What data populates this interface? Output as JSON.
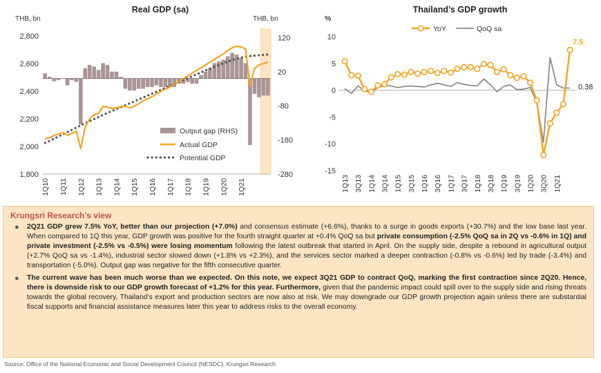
{
  "chart_data": [
    {
      "type": "bar+line",
      "title": "Real GDP (sa)",
      "ylabel_left": "THB, bn",
      "ylabel_right": "THB, bn",
      "yticks_left": [
        "2,800",
        "2,600",
        "2,400",
        "2,200",
        "2,000",
        "1,800"
      ],
      "ylim_left": [
        1800,
        2850
      ],
      "yticks_right": [
        "120",
        "20",
        "-80",
        "-180",
        "-280"
      ],
      "ylim_right": [
        -280,
        145
      ],
      "xticks": [
        "1Q10",
        "1Q11",
        "1Q12",
        "1Q13",
        "1Q14",
        "1Q15",
        "1Q16",
        "1Q17",
        "1Q18",
        "1Q19",
        "1Q20",
        "1Q21"
      ],
      "legend_position": "bottom-center",
      "highlight_last_quarters": 2,
      "series": [
        {
          "name": "Output gap (RHS)",
          "kind": "bar",
          "axis": "right",
          "values": [
            15,
            5,
            -8,
            -5,
            0,
            -20,
            -5,
            -10,
            -135,
            30,
            40,
            35,
            25,
            45,
            40,
            20,
            20,
            5,
            -30,
            -35,
            -35,
            -30,
            -30,
            -25,
            -25,
            -20,
            -25,
            -25,
            -25,
            -25,
            -15,
            -15,
            -10,
            -15,
            -15,
            10,
            20,
            30,
            45,
            50,
            55,
            65,
            75,
            70,
            60,
            45,
            -195,
            -45,
            -55,
            -50,
            -50
          ]
        },
        {
          "name": "Actual GDP",
          "kind": "line",
          "axis": "left",
          "values": [
            2055,
            2062,
            2080,
            2090,
            2100,
            2080,
            2095,
            2110,
            1985,
            2140,
            2200,
            2230,
            2240,
            2290,
            2285,
            2275,
            2280,
            2290,
            2290,
            2280,
            2290,
            2310,
            2330,
            2345,
            2360,
            2380,
            2400,
            2415,
            2430,
            2450,
            2470,
            2490,
            2510,
            2530,
            2550,
            2570,
            2590,
            2610,
            2630,
            2650,
            2670,
            2695,
            2715,
            2725,
            2720,
            2705,
            2440,
            2565,
            2590,
            2600,
            2610
          ]
        },
        {
          "name": "Potential GDP",
          "kind": "dotted-line",
          "axis": "left",
          "values": [
            2025,
            2040,
            2056,
            2072,
            2088,
            2104,
            2120,
            2136,
            2152,
            2168,
            2183,
            2198,
            2213,
            2228,
            2242,
            2256,
            2270,
            2284,
            2298,
            2312,
            2326,
            2340,
            2354,
            2368,
            2382,
            2396,
            2410,
            2424,
            2438,
            2452,
            2466,
            2480,
            2494,
            2508,
            2522,
            2536,
            2550,
            2563,
            2576,
            2589,
            2602,
            2614,
            2625,
            2635,
            2643,
            2650,
            2654,
            2657,
            2660,
            2663,
            2665
          ]
        }
      ]
    },
    {
      "type": "line",
      "title": "Thailand’s GDP growth",
      "ylabel": "%",
      "yticks": [
        "10",
        "5",
        "0",
        "-5",
        "-10",
        "-15"
      ],
      "ylim": [
        -15,
        10
      ],
      "xticks": [
        "1Q13",
        "3Q13",
        "1Q14",
        "3Q14",
        "1Q15",
        "3Q15",
        "1Q16",
        "3Q16",
        "1Q17",
        "3Q17",
        "1Q18",
        "3Q18",
        "1Q19",
        "3Q19",
        "1Q20",
        "3Q20",
        "1Q21"
      ],
      "legend_position": "top-left",
      "series": [
        {
          "name": "YoY",
          "values": [
            5.4,
            2.8,
            2.7,
            0.2,
            -0.3,
            0.9,
            1.1,
            2.4,
            3.0,
            2.9,
            3.4,
            3.1,
            3.4,
            3.6,
            3.2,
            3.6,
            3.3,
            4.0,
            4.3,
            4.3,
            4.0,
            4.9,
            4.7,
            3.4,
            3.9,
            2.8,
            2.3,
            2.6,
            1.4,
            -1.9,
            -12.1,
            -6.2,
            -4.2,
            -2.6,
            7.5
          ]
        },
        {
          "name": "QoQ sa",
          "values": [
            0.3,
            -0.6,
            0.8,
            -0.1,
            -0.4,
            0.5,
            0.9,
            0.8,
            0.5,
            0.7,
            0.8,
            0.7,
            0.6,
            1.0,
            1.3,
            1.0,
            0.7,
            1.4,
            1.1,
            0.9,
            0.8,
            2.1,
            1.0,
            -0.3,
            0.7,
            1.0,
            0.1,
            0.2,
            0.5,
            -2.2,
            -9.7,
            6.1,
            1.0,
            0.4,
            0.4
          ]
        }
      ],
      "annotations": [
        {
          "text": "7.5",
          "series": "YoY"
        },
        {
          "text": "0.38",
          "series": "QoQ sa"
        }
      ]
    }
  ],
  "view": {
    "title": "Krungsri Research’s view",
    "bullets": [
      [
        {
          "t": "2Q21 GDP grew 7.5% YoY, better than our projection (+7.0%)",
          "b": true
        },
        {
          "t": " and consensus estimate (+6.6%), thanks to a surge in goods exports (+30.7%) and the low base last year. When compared to 1Q this year, GDP growth was positive for the fourth straight quarter at +0.4% QoQ sa but ",
          "b": false
        },
        {
          "t": "private consumption (-2.5% QoQ sa in 2Q vs -0.6% in 1Q) and private investment (-2.5% vs -0.5%) were losing momentum",
          "b": true
        },
        {
          "t": " following the latest outbreak that started in April. On the supply side, despite a rebound in agricultural output (+2.7% QoQ sa vs -1.4%), industrial sector slowed down (+1.8% vs +2.3%), and the services sector marked a deeper contraction (-0.8% vs -0.6%) led by trade (-3.4%) and transportation (-5.0%). Output gap was negative for the fifth consecutive quarter.",
          "b": false
        }
      ],
      [
        {
          "t": "The current wave has been much worse than we expected. On this note, we expect 3Q21 GDP to contract QoQ, marking the first contraction since 2Q20. Hence, there is downside risk to our GDP growth forecast of +1.2% for this year. Furthermore,",
          "b": true
        },
        {
          "t": " given that the pandemic impact could spill over to the supply side and rising threats towards the global recovery, Thailand’s export and production sectors are now also at risk. We may downgrade our GDP growth projection again unless there are substantial fiscal supports and financial assistance measures later this year to address risks to the overall economy.",
          "b": false
        }
      ]
    ]
  },
  "source": "Source: Office of the National Economic and Social Development Council (NESDC), Krungsri Research",
  "colors": {
    "orange": "#f5a31f",
    "bar": "#a99496",
    "potential": "#555555",
    "qoq": "#8c8c8c",
    "highlight": "#fde5c3",
    "box_title": "#c0504d",
    "box_bg": "#fde5c3"
  }
}
